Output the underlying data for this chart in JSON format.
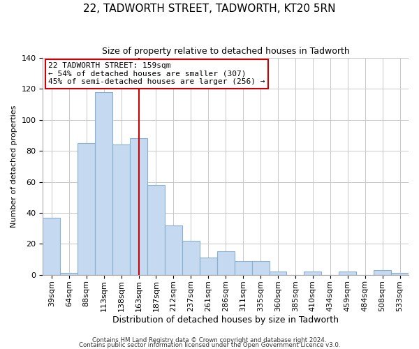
{
  "title": "22, TADWORTH STREET, TADWORTH, KT20 5RN",
  "subtitle": "Size of property relative to detached houses in Tadworth",
  "xlabel": "Distribution of detached houses by size in Tadworth",
  "ylabel": "Number of detached properties",
  "bar_labels": [
    "39sqm",
    "64sqm",
    "88sqm",
    "113sqm",
    "138sqm",
    "163sqm",
    "187sqm",
    "212sqm",
    "237sqm",
    "261sqm",
    "286sqm",
    "311sqm",
    "335sqm",
    "360sqm",
    "385sqm",
    "410sqm",
    "434sqm",
    "459sqm",
    "484sqm",
    "508sqm",
    "533sqm"
  ],
  "bar_heights": [
    37,
    1,
    85,
    118,
    84,
    88,
    58,
    32,
    22,
    11,
    15,
    9,
    9,
    2,
    0,
    2,
    0,
    2,
    0,
    3,
    1
  ],
  "bar_color": "#c5d9f0",
  "bar_edge_color": "#8ab0d0",
  "vline_color": "#cc0000",
  "annotation_box_text": "22 TADWORTH STREET: 159sqm\n← 54% of detached houses are smaller (307)\n45% of semi-detached houses are larger (256) →",
  "annotation_box_edgecolor": "#cc0000",
  "ylim": [
    0,
    140
  ],
  "yticks": [
    0,
    20,
    40,
    60,
    80,
    100,
    120,
    140
  ],
  "footer_line1": "Contains HM Land Registry data © Crown copyright and database right 2024.",
  "footer_line2": "Contains public sector information licensed under the Open Government Licence v3.0.",
  "background_color": "#ffffff",
  "grid_color": "#c8c8c8",
  "title_fontsize": 11,
  "subtitle_fontsize": 9,
  "xlabel_fontsize": 9,
  "ylabel_fontsize": 8
}
